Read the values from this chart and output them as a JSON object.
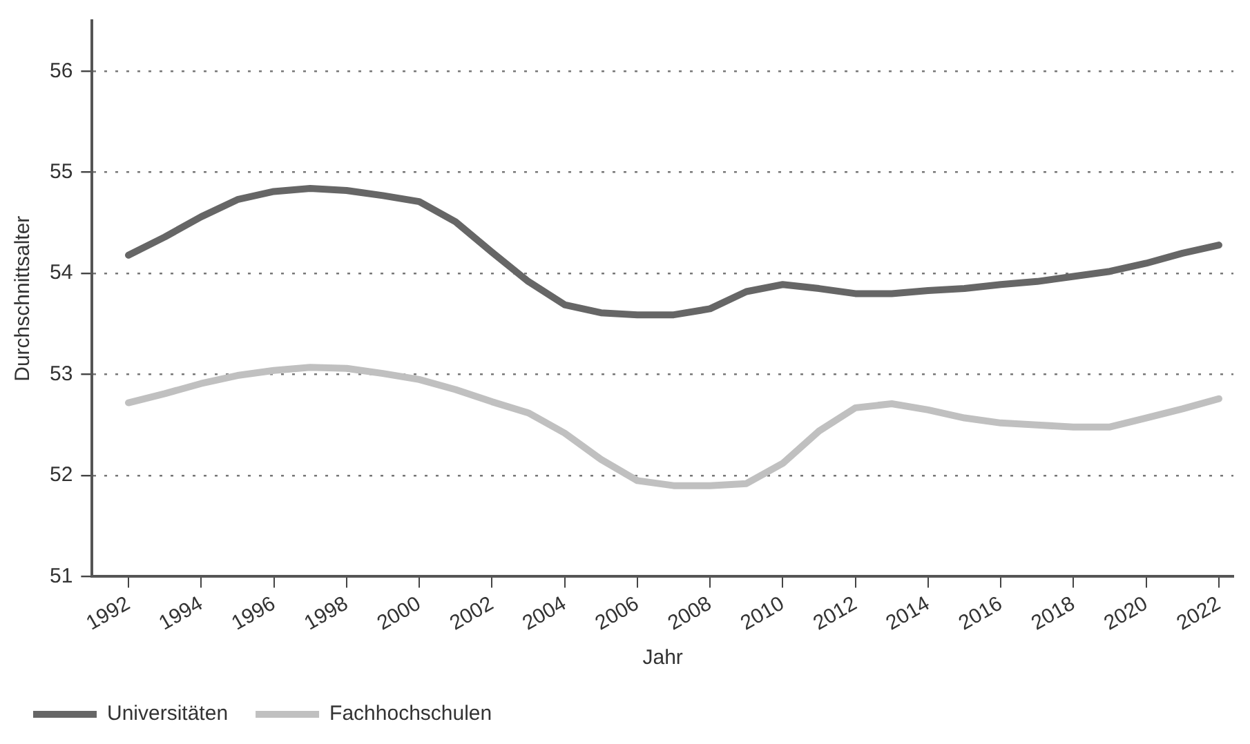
{
  "chart_data": {
    "type": "line",
    "xlabel": "Jahr",
    "ylabel": "Durchschnittsalter",
    "x": [
      1992,
      1993,
      1994,
      1995,
      1996,
      1997,
      1998,
      1999,
      2000,
      2001,
      2002,
      2003,
      2004,
      2005,
      2006,
      2007,
      2008,
      2009,
      2010,
      2011,
      2012,
      2013,
      2014,
      2015,
      2016,
      2017,
      2018,
      2019,
      2020,
      2021,
      2022
    ],
    "series": [
      {
        "name": "Universitäten",
        "color": "#666666",
        "values": [
          54.18,
          54.36,
          54.56,
          54.73,
          54.81,
          54.84,
          54.82,
          54.77,
          54.71,
          54.51,
          54.21,
          53.92,
          53.69,
          53.61,
          53.59,
          53.59,
          53.65,
          53.82,
          53.89,
          53.85,
          53.8,
          53.8,
          53.83,
          53.85,
          53.89,
          53.92,
          53.97,
          54.02,
          54.1,
          54.2,
          54.28
        ]
      },
      {
        "name": "Fachhochschulen",
        "color": "#c0c0c0",
        "values": [
          52.72,
          52.81,
          52.91,
          52.99,
          53.04,
          53.07,
          53.06,
          53.01,
          52.95,
          52.85,
          52.73,
          52.62,
          52.42,
          52.16,
          51.95,
          51.9,
          51.9,
          51.92,
          52.12,
          52.44,
          52.67,
          52.71,
          52.65,
          52.57,
          52.52,
          52.5,
          52.48,
          52.48,
          52.57,
          52.66,
          52.76
        ]
      }
    ],
    "xlim": [
      1991,
      2022.4
    ],
    "xticks": [
      1992,
      1994,
      1996,
      1998,
      2000,
      2002,
      2004,
      2006,
      2008,
      2010,
      2012,
      2014,
      2016,
      2018,
      2020,
      2022
    ],
    "ylim": [
      51,
      56.5
    ],
    "yticks": [
      51,
      52,
      53,
      54,
      55,
      56
    ],
    "grid": "y",
    "legend": "bottom left",
    "marker": "none",
    "line_style": "solid"
  }
}
